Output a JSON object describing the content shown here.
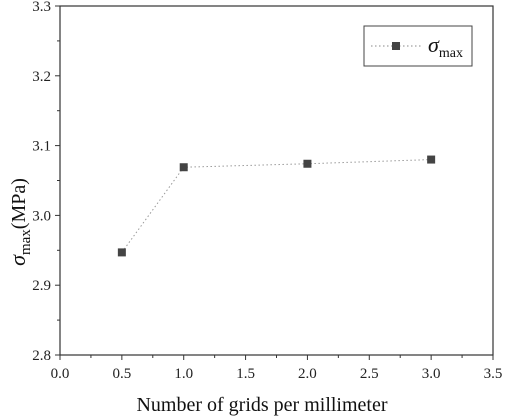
{
  "chart_data": {
    "type": "line",
    "xlabel": "Number of grids per millimeter",
    "ylabel": {
      "symbol": "σ",
      "subscript": "max",
      "unit": "(MPa)"
    },
    "xlim": [
      0.0,
      3.5
    ],
    "ylim": [
      2.8,
      3.3
    ],
    "xticks": [
      "0.0",
      "0.5",
      "1.0",
      "1.5",
      "2.0",
      "2.5",
      "3.0",
      "3.5"
    ],
    "yticks": [
      "2.8",
      "2.9",
      "3.0",
      "3.1",
      "3.2",
      "3.3"
    ],
    "grid": false,
    "legend_position": "top-right",
    "series": [
      {
        "name": {
          "symbol": "σ",
          "subscript": "max"
        },
        "marker": "square",
        "line_style": "dotted",
        "color": "#444444",
        "x": [
          0.5,
          1.0,
          2.0,
          3.0
        ],
        "y": [
          2.947,
          3.069,
          3.074,
          3.08
        ]
      }
    ]
  }
}
